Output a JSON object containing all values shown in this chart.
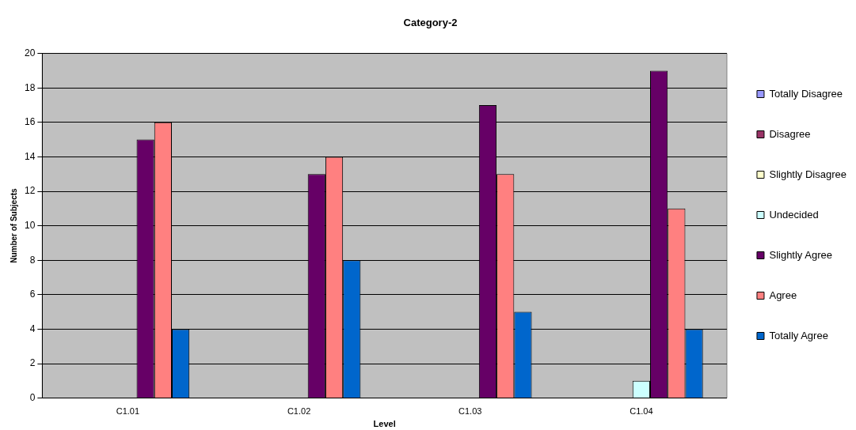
{
  "chart_data": {
    "type": "bar",
    "title": "Category-2",
    "xlabel": "Level",
    "ylabel": "Number of Subjects",
    "categories": [
      "C1.01",
      "C1.02",
      "C1.03",
      "C1.04"
    ],
    "series": [
      {
        "name": "Totally Disagree",
        "color": "#9999ff",
        "values": [
          0,
          0,
          0,
          0
        ]
      },
      {
        "name": "Disagree",
        "color": "#993366",
        "values": [
          0,
          0,
          0,
          0
        ]
      },
      {
        "name": "Slightly Disagree",
        "color": "#ffffcc",
        "values": [
          0,
          0,
          0,
          0
        ]
      },
      {
        "name": "Undecided",
        "color": "#ccffff",
        "values": [
          0,
          0,
          0,
          1
        ]
      },
      {
        "name": "Slightly Agree",
        "color": "#660066",
        "values": [
          15,
          13,
          17,
          19
        ]
      },
      {
        "name": "Agree",
        "color": "#ff8080",
        "values": [
          16,
          14,
          13,
          11
        ]
      },
      {
        "name": "Totally Agree",
        "color": "#0066cc",
        "values": [
          4,
          8,
          5,
          4
        ]
      }
    ],
    "ylim": [
      0,
      20
    ],
    "yticks": [
      0,
      2,
      4,
      6,
      8,
      10,
      12,
      14,
      16,
      18,
      20
    ],
    "grid": "y",
    "legend": "right"
  }
}
